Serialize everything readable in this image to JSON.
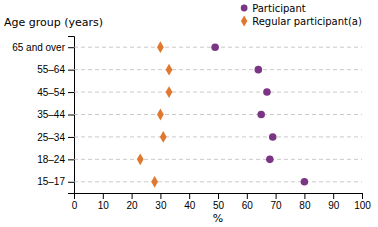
{
  "chart_data": {
    "type": "dot",
    "ylabel": "Age group (years)",
    "xlabel": "%",
    "categories": [
      "15–17",
      "18–24",
      "25–34",
      "35–44",
      "45–54",
      "55–64",
      "65 and over"
    ],
    "series": [
      {
        "name": "Participant",
        "color": "#7b3585",
        "marker": "circle",
        "values": [
          80,
          68,
          69,
          65,
          67,
          64,
          49
        ]
      },
      {
        "name": "Regular participant(a)",
        "color": "#e07830",
        "marker": "diamond",
        "values": [
          28,
          23,
          31,
          30,
          33,
          33,
          30
        ]
      }
    ],
    "xlim": [
      0,
      100
    ],
    "xticks": [
      0,
      10,
      20,
      30,
      40,
      50,
      60,
      70,
      80,
      90,
      100
    ],
    "grid": true,
    "legend": "upper right"
  }
}
